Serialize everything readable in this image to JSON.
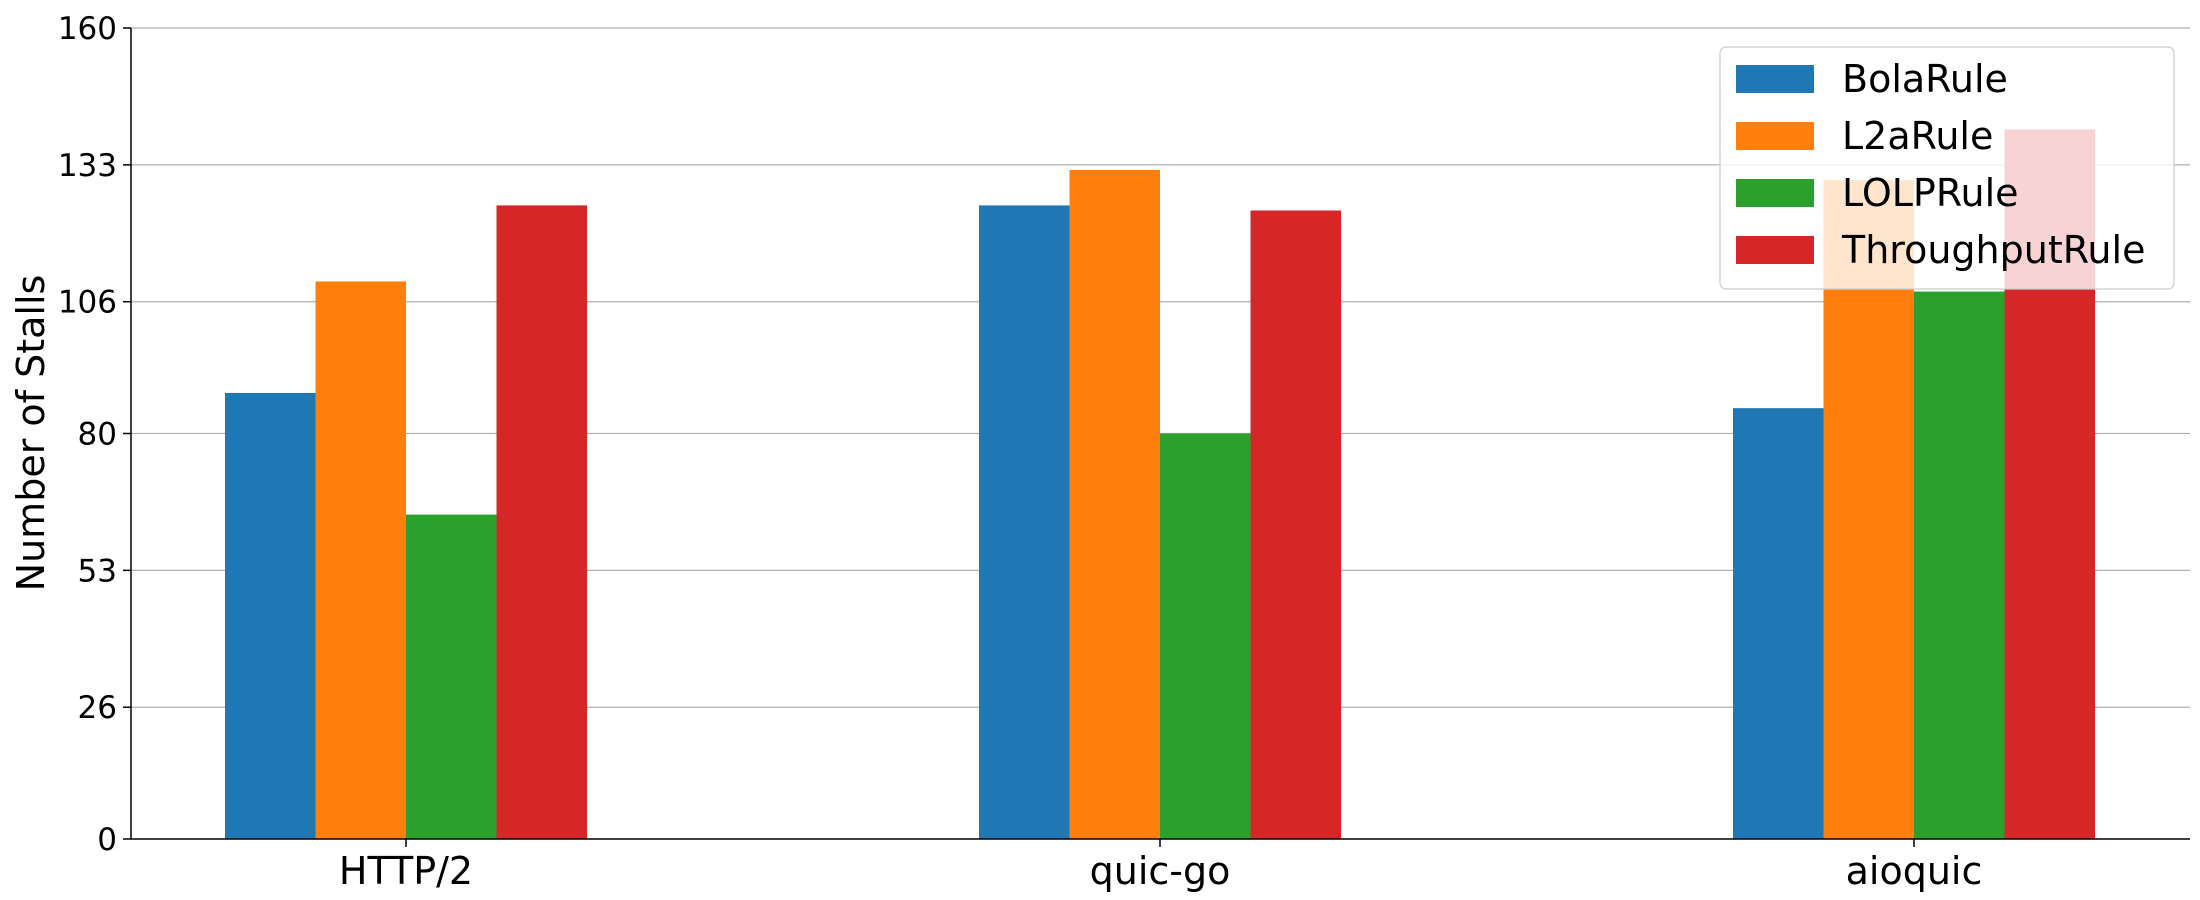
{
  "chart_data": {
    "type": "bar",
    "title": "",
    "xlabel": "",
    "ylabel": "Number of Stalls",
    "categories": [
      "HTTP/2",
      "quic-go",
      "aioquic"
    ],
    "ylim": [
      0,
      160
    ],
    "yticks": [
      0,
      26,
      53,
      80,
      106,
      133,
      160
    ],
    "grid": "horizontal",
    "legend_position": "top-right",
    "series": [
      {
        "name": "BolaRule",
        "color": "#1f77b4",
        "values": [
          88,
          125,
          85
        ]
      },
      {
        "name": "L2aRule",
        "color": "#ff7f0e",
        "values": [
          110,
          132,
          130
        ]
      },
      {
        "name": "LOLPRule",
        "color": "#2ca02c",
        "values": [
          64,
          80,
          108
        ]
      },
      {
        "name": "ThroughputRule",
        "color": "#d62728",
        "values": [
          125,
          124,
          140
        ]
      }
    ]
  }
}
